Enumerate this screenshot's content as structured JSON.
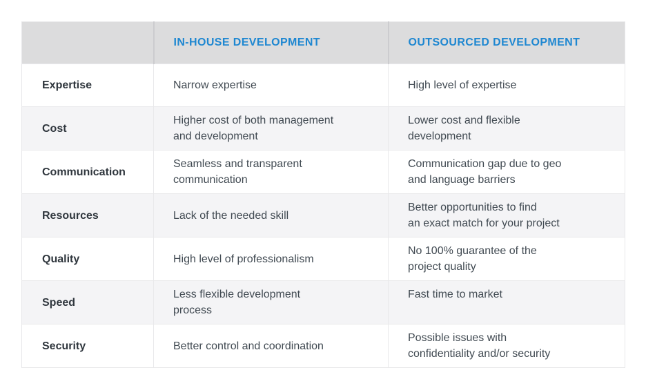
{
  "colors": {
    "accent_blue": "#1e87d1",
    "header_bg": "#dcdcdd",
    "row_alt_bg": "#f4f4f6",
    "body_text": "#414a52",
    "label_text": "#2f363d",
    "border": "#e9e9eb"
  },
  "chart_data": {
    "type": "table",
    "columns": [
      "",
      "IN-HOUSE DEVELOPMENT",
      "OUTSOURCED DEVELOPMENT"
    ],
    "rows": [
      {
        "label": "Expertise",
        "inhouse": "Narrow expertise",
        "outsourced": "High level of expertise"
      },
      {
        "label": "Cost",
        "inhouse": "Higher cost of both management\nand development",
        "outsourced": "Lower cost and flexible\ndevelopment"
      },
      {
        "label": "Communication",
        "inhouse": "Seamless and transparent\ncommunication",
        "outsourced": "Communication gap due to geo\nand language barriers"
      },
      {
        "label": "Resources",
        "inhouse": "Lack of the needed skill",
        "outsourced": "Better opportunities to find\nan exact match for your project"
      },
      {
        "label": "Quality",
        "inhouse": "High level of professionalism",
        "outsourced": "No 100% guarantee of the\nproject quality"
      },
      {
        "label": "Speed",
        "inhouse": "Less flexible development\nprocess",
        "outsourced": "Fast time to market"
      },
      {
        "label": "Security",
        "inhouse": "Better control and coordination",
        "outsourced": "Possible issues with\nconfidentiality and/or security"
      }
    ]
  }
}
